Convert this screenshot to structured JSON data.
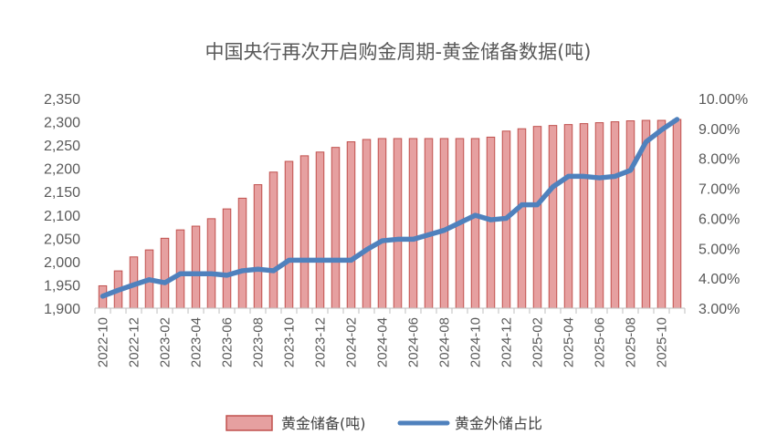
{
  "chart_data": {
    "type": "bar+line",
    "title": "中国央行再次开启购金周期-黄金储备数据(吨)",
    "x": [
      "2022-10",
      "2022-11",
      "2022-12",
      "2023-01",
      "2023-02",
      "2023-03",
      "2023-04",
      "2023-05",
      "2023-06",
      "2023-07",
      "2023-08",
      "2023-09",
      "2023-10",
      "2023-11",
      "2023-12",
      "2024-01",
      "2024-02",
      "2024-03",
      "2024-04",
      "2024-05",
      "2024-06",
      "2024-07",
      "2024-08",
      "2024-09",
      "2024-10",
      "2024-11",
      "2024-12",
      "2025-01",
      "2025-02",
      "2025-03",
      "2025-04",
      "2025-05",
      "2025-06",
      "2025-07",
      "2025-08",
      "2025-09",
      "2025-10",
      "2025-11"
    ],
    "x_tick_labels": [
      "2022-10",
      "2022-12",
      "2023-02",
      "2023-04",
      "2023-06",
      "2023-08",
      "2023-10",
      "2023-12",
      "2024-02",
      "2024-04",
      "2024-06",
      "2024-08",
      "2024-10",
      "2024-12",
      "2025-02",
      "2025-04",
      "2025-06",
      "2025-08",
      "2025-10"
    ],
    "y_left": {
      "ylim": [
        1900,
        2350
      ],
      "ticks": [
        "1,900",
        "1,950",
        "2,000",
        "2,050",
        "2,100",
        "2,150",
        "2,200",
        "2,250",
        "2,300",
        "2,350"
      ]
    },
    "y_right": {
      "ylim": [
        3.0,
        10.0
      ],
      "ticks": [
        "3.00%",
        "4.00%",
        "5.00%",
        "6.00%",
        "7.00%",
        "8.00%",
        "9.00%",
        "10.00%"
      ]
    },
    "series": [
      {
        "name": "黄金储备(吨)",
        "type": "bar",
        "axis": "left",
        "color": "#E6A0A0",
        "edge_color": "#C0504D",
        "values": [
          1948,
          1980,
          2010,
          2025,
          2050,
          2068,
          2076,
          2092,
          2113,
          2136,
          2165,
          2192,
          2215,
          2227,
          2235,
          2245,
          2257,
          2262,
          2264,
          2264,
          2264,
          2264,
          2264,
          2264,
          2264,
          2267,
          2280,
          2285,
          2290,
          2292,
          2294,
          2296,
          2298,
          2300,
          2302,
          2303,
          2303,
          2305
        ]
      },
      {
        "name": "黄金外储占比",
        "type": "line",
        "axis": "right",
        "color": "#4F81BD",
        "values": [
          3.4,
          3.6,
          3.78,
          3.95,
          3.85,
          4.15,
          4.15,
          4.15,
          4.1,
          4.25,
          4.3,
          4.25,
          4.6,
          4.6,
          4.6,
          4.6,
          4.6,
          4.95,
          5.25,
          5.3,
          5.3,
          5.45,
          5.6,
          5.85,
          6.1,
          5.95,
          6.0,
          6.45,
          6.45,
          7.05,
          7.4,
          7.4,
          7.35,
          7.4,
          7.6,
          8.55,
          8.95,
          9.3
        ]
      }
    ],
    "legend": "bottom",
    "grid": false
  }
}
